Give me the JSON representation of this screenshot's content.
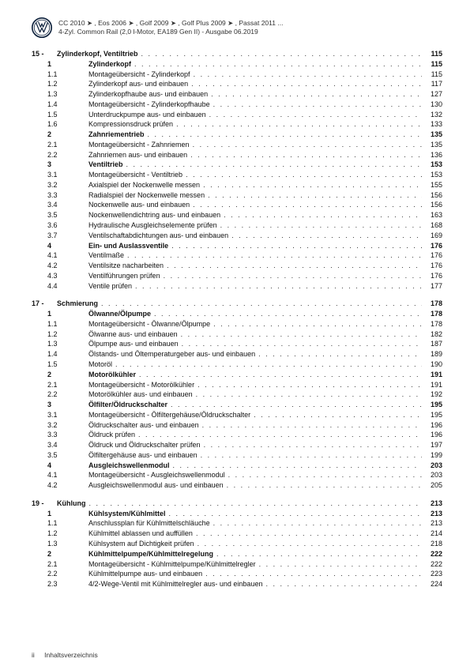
{
  "header": {
    "line1": "CC 2010 ➤ , Eos 2006 ➤ , Golf 2009 ➤ , Golf Plus 2009 ➤ , Passat 2011 ...",
    "line2": "4-Zyl. Common Rail (2,0 l-Motor, EA189 Gen II) - Ausgabe 06.2019"
  },
  "footer": {
    "page_num": "ii",
    "label": "Inhaltsverzeichnis"
  },
  "chapters": [
    {
      "num": "15 -",
      "title": "Zylinderkopf, Ventiltrieb",
      "page": "115",
      "sections": [
        {
          "num": "1",
          "title": "Zylinderkopf",
          "page": "115",
          "subs": [
            {
              "num": "1.1",
              "title": "Montageübersicht - Zylinderkopf",
              "page": "115"
            },
            {
              "num": "1.2",
              "title": "Zylinderkopf aus- und einbauen",
              "page": "117"
            },
            {
              "num": "1.3",
              "title": "Zylinderkopfhaube aus- und einbauen",
              "page": "127"
            },
            {
              "num": "1.4",
              "title": "Montageübersicht - Zylinderkopfhaube",
              "page": "130"
            },
            {
              "num": "1.5",
              "title": "Unterdruckpumpe aus- und einbauen",
              "page": "132"
            },
            {
              "num": "1.6",
              "title": "Kompressionsdruck prüfen",
              "page": "133"
            }
          ]
        },
        {
          "num": "2",
          "title": "Zahnriementrieb",
          "page": "135",
          "subs": [
            {
              "num": "2.1",
              "title": "Montageübersicht - Zahnriemen",
              "page": "135"
            },
            {
              "num": "2.2",
              "title": "Zahnriemen aus- und einbauen",
              "page": "136"
            }
          ]
        },
        {
          "num": "3",
          "title": "Ventiltrieb",
          "page": "153",
          "subs": [
            {
              "num": "3.1",
              "title": "Montageübersicht - Ventiltrieb",
              "page": "153"
            },
            {
              "num": "3.2",
              "title": "Axialspiel der Nockenwelle messen",
              "page": "155"
            },
            {
              "num": "3.3",
              "title": "Radialspiel der Nockenwelle messen",
              "page": "156"
            },
            {
              "num": "3.4",
              "title": "Nockenwelle aus- und einbauen",
              "page": "156"
            },
            {
              "num": "3.5",
              "title": "Nockenwellendichtring aus- und einbauen",
              "page": "163"
            },
            {
              "num": "3.6",
              "title": "Hydraulische Ausgleichselemente prüfen",
              "page": "168"
            },
            {
              "num": "3.7",
              "title": "Ventilschaftabdichtungen aus- und einbauen",
              "page": "169"
            }
          ]
        },
        {
          "num": "4",
          "title": "Ein- und Auslassventile",
          "page": "176",
          "subs": [
            {
              "num": "4.1",
              "title": "Ventilmaße",
              "page": "176"
            },
            {
              "num": "4.2",
              "title": "Ventilsitze nacharbeiten",
              "page": "176"
            },
            {
              "num": "4.3",
              "title": "Ventilführungen prüfen",
              "page": "176"
            },
            {
              "num": "4.4",
              "title": "Ventile prüfen",
              "page": "177"
            }
          ]
        }
      ]
    },
    {
      "num": "17 -",
      "title": "Schmierung",
      "page": "178",
      "sections": [
        {
          "num": "1",
          "title": "Ölwanne/Ölpumpe",
          "page": "178",
          "subs": [
            {
              "num": "1.1",
              "title": "Montageübersicht - Ölwanne/Ölpumpe",
              "page": "178"
            },
            {
              "num": "1.2",
              "title": "Ölwanne aus- und einbauen",
              "page": "182"
            },
            {
              "num": "1.3",
              "title": "Ölpumpe aus- und einbauen",
              "page": "187"
            },
            {
              "num": "1.4",
              "title": "Ölstands- und Öltemperaturgeber aus- und einbauen",
              "page": "189"
            },
            {
              "num": "1.5",
              "title": "Motoröl",
              "page": "190"
            }
          ]
        },
        {
          "num": "2",
          "title": "Motorölkühler",
          "page": "191",
          "subs": [
            {
              "num": "2.1",
              "title": "Montageübersicht - Motorölkühler",
              "page": "191"
            },
            {
              "num": "2.2",
              "title": "Motorölkühler aus- und einbauen",
              "page": "192"
            }
          ]
        },
        {
          "num": "3",
          "title": "Ölfilter/Öldruckschalter",
          "page": "195",
          "subs": [
            {
              "num": "3.1",
              "title": "Montageübersicht - Ölfiltergehäuse/Öldruckschalter",
              "page": "195"
            },
            {
              "num": "3.2",
              "title": "Öldruckschalter aus- und einbauen",
              "page": "196"
            },
            {
              "num": "3.3",
              "title": "Öldruck prüfen",
              "page": "196"
            },
            {
              "num": "3.4",
              "title": "Öldruck und Öldruckschalter prüfen",
              "page": "197"
            },
            {
              "num": "3.5",
              "title": "Ölfiltergehäuse aus- und einbauen",
              "page": "199"
            }
          ]
        },
        {
          "num": "4",
          "title": "Ausgleichswellenmodul",
          "page": "203",
          "subs": [
            {
              "num": "4.1",
              "title": "Montageübersicht - Ausgleichswellenmodul",
              "page": "203"
            },
            {
              "num": "4.2",
              "title": "Ausgleichswellenmodul aus- und einbauen",
              "page": "205"
            }
          ]
        }
      ]
    },
    {
      "num": "19 -",
      "title": "Kühlung",
      "page": "213",
      "sections": [
        {
          "num": "1",
          "title": "Kühlsystem/Kühlmittel",
          "page": "213",
          "subs": [
            {
              "num": "1.1",
              "title": "Anschlussplan für Kühlmittelschläuche",
              "page": "213"
            },
            {
              "num": "1.2",
              "title": "Kühlmittel ablassen und auffüllen",
              "page": "214"
            },
            {
              "num": "1.3",
              "title": "Kühlsystem auf Dichtigkeit prüfen",
              "page": "218"
            }
          ]
        },
        {
          "num": "2",
          "title": "Kühlmittelpumpe/Kühlmittelregelung",
          "page": "222",
          "subs": [
            {
              "num": "2.1",
              "title": "Montageübersicht - Kühlmittelpumpe/Kühlmittelregler",
              "page": "222"
            },
            {
              "num": "2.2",
              "title": "Kühlmittelpumpe aus- und einbauen",
              "page": "223"
            },
            {
              "num": "2.3",
              "title": "4/2-Wege-Ventil mit Kühlmittelregler aus- und einbauen",
              "page": "224"
            }
          ]
        }
      ]
    }
  ]
}
